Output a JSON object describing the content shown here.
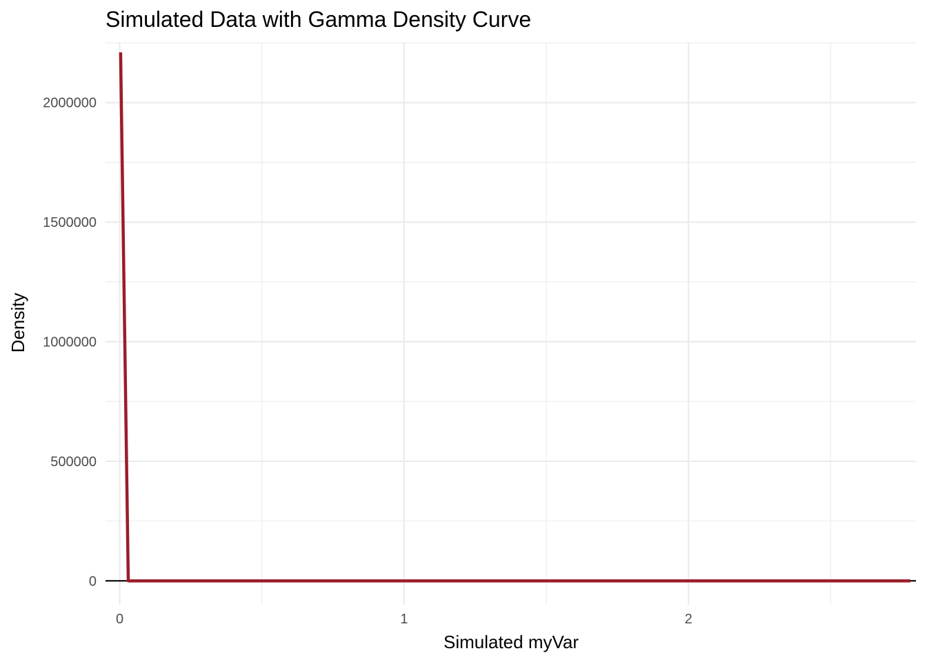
{
  "chart_data": {
    "type": "line",
    "title": "Simulated Data with Gamma Density Curve",
    "xlabel": "Simulated myVar",
    "ylabel": "Density",
    "xlim": [
      -0.05,
      2.8
    ],
    "ylim": [
      -100000,
      2250000
    ],
    "x_ticks": [
      0,
      1,
      2
    ],
    "x_tick_labels": [
      "0",
      "1",
      "2"
    ],
    "x_minor_ticks": [
      0.5,
      1.5,
      2.5
    ],
    "y_ticks": [
      0,
      500000,
      1000000,
      1500000,
      2000000
    ],
    "y_tick_labels": [
      "0",
      "500000",
      "1000000",
      "1500000",
      "2000000"
    ],
    "y_minor_ticks": [
      250000,
      750000,
      1250000,
      1750000,
      2000000,
      2250000
    ],
    "grid": true,
    "legend": "none",
    "baseline": {
      "y": 0,
      "x_range": [
        -0.05,
        2.8
      ],
      "color": "#000000"
    },
    "series": [
      {
        "color": "#9b1c2a",
        "x": [
          0.003,
          0.03,
          0.1,
          0.5,
          1.0,
          1.5,
          2.0,
          2.5,
          2.78
        ],
        "y": [
          2210000,
          0,
          0,
          0,
          0,
          0,
          0,
          0,
          0
        ]
      }
    ]
  }
}
